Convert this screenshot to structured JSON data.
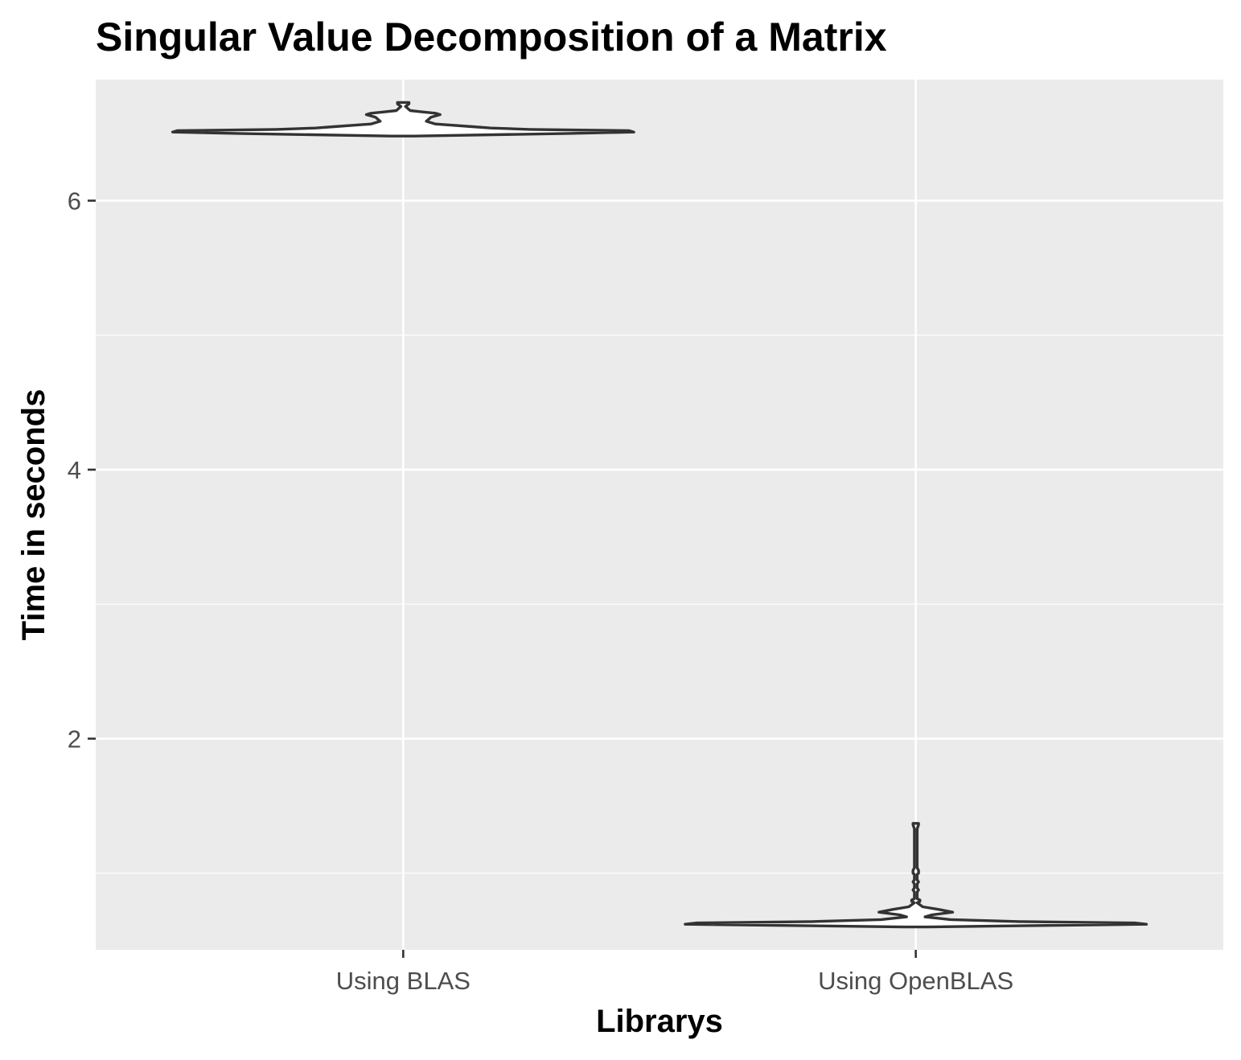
{
  "chart_data": {
    "type": "violin",
    "title": "Singular Value Decomposition of a Matrix",
    "xlabel": "Librarys",
    "ylabel": "Time in seconds",
    "categories": [
      "Using BLAS",
      "Using OpenBLAS"
    ],
    "ylim": [
      0.43,
      6.9
    ],
    "yticks": [
      2,
      4,
      6
    ],
    "ytick_labels": [
      "2",
      "4",
      "6"
    ],
    "grid": true,
    "colors": {
      "panel": "#ebebeb",
      "grid": "#ffffff",
      "outline": "#333333",
      "tick": "#333333"
    },
    "series": [
      {
        "category": "Using BLAS",
        "min": 6.48,
        "max": 6.73,
        "profile": [
          [
            6.48,
            0.05
          ],
          [
            6.5,
            0.72
          ],
          [
            6.51,
            1.0
          ],
          [
            6.52,
            0.98
          ],
          [
            6.53,
            0.55
          ],
          [
            6.54,
            0.38
          ],
          [
            6.55,
            0.3
          ],
          [
            6.57,
            0.14
          ],
          [
            6.59,
            0.1
          ],
          [
            6.62,
            0.12
          ],
          [
            6.64,
            0.16
          ],
          [
            6.65,
            0.14
          ],
          [
            6.66,
            0.08
          ],
          [
            6.67,
            0.03
          ],
          [
            6.7,
            0.01
          ],
          [
            6.72,
            0.025
          ],
          [
            6.73,
            0.025
          ]
        ]
      },
      {
        "category": "Using OpenBLAS",
        "min": 0.6,
        "max": 1.37,
        "profile": [
          [
            0.6,
            0.05
          ],
          [
            0.61,
            0.5
          ],
          [
            0.62,
            1.0
          ],
          [
            0.63,
            0.95
          ],
          [
            0.64,
            0.45
          ],
          [
            0.655,
            0.15
          ],
          [
            0.675,
            0.04
          ],
          [
            0.69,
            0.07
          ],
          [
            0.71,
            0.16
          ],
          [
            0.73,
            0.1
          ],
          [
            0.75,
            0.03
          ],
          [
            0.78,
            0.006
          ],
          [
            0.79,
            0.018
          ],
          [
            0.8,
            0.018
          ],
          [
            0.81,
            0.006
          ],
          [
            0.86,
            0.006
          ],
          [
            0.875,
            0.012
          ],
          [
            0.89,
            0.006
          ],
          [
            0.92,
            0.006
          ],
          [
            0.935,
            0.012
          ],
          [
            0.95,
            0.006
          ],
          [
            0.99,
            0.006
          ],
          [
            1.0,
            0.012
          ],
          [
            1.02,
            0.012
          ],
          [
            1.04,
            0.006
          ],
          [
            1.33,
            0.006
          ],
          [
            1.36,
            0.012
          ],
          [
            1.37,
            0.012
          ]
        ]
      }
    ]
  }
}
